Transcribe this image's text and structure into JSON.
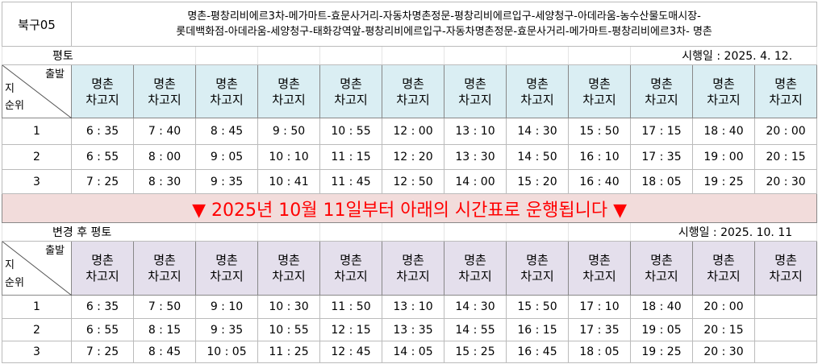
{
  "route_code": "북구05",
  "route_line1": "명촌-평창리비에르3차-메가마트-효문사거리-자동차명촌정문-평창리비에르입구-세양청구-아데라움-농수산물도매시장-",
  "route_line2": "롯데백화점-아데라움-세양청구-태화강역앞-평창리비에르입구-자동차명촌정문-효문사거리-메가마트-평창리비에르3차-  명촌",
  "corner": {
    "top": "출발",
    "mid": "지",
    "bottom": "순위"
  },
  "header_label": "명촌\n차고지",
  "table1": {
    "day_type": "평토",
    "effective": "시행일 : 2025.  4. 12.",
    "rows": [
      {
        "rank": "1",
        "times": [
          "6 : 35",
          "7 : 40",
          "8 : 45",
          "9 : 50",
          "10 : 55",
          "12 : 00",
          "13 : 10",
          "14 : 30",
          "15 : 50",
          "17 : 15",
          "18 : 40",
          "20 : 00"
        ]
      },
      {
        "rank": "2",
        "times": [
          "6 : 55",
          "8 : 00",
          "9 : 05",
          "10 : 10",
          "11 : 15",
          "12 : 20",
          "13 : 30",
          "14 : 50",
          "16 : 10",
          "17 : 35",
          "19 : 00",
          "20 : 15"
        ]
      },
      {
        "rank": "3",
        "times": [
          "7 : 25",
          "8 : 30",
          "9 : 35",
          "10 : 41",
          "11 : 45",
          "12 : 50",
          "14 : 00",
          "15 : 20",
          "16 : 40",
          "18 : 05",
          "19 : 25",
          "20 : 30"
        ]
      }
    ]
  },
  "banner": "▼ 2025년 10월 11일부터 아래의 시간표로 운행됩니다 ▼",
  "table2": {
    "day_type": "변경 후 평토",
    "effective": "시행일 : 2025. 10. 11",
    "rows": [
      {
        "rank": "1",
        "times": [
          "6 : 35",
          "7 : 50",
          "9 : 10",
          "10 : 30",
          "11 : 50",
          "13 : 10",
          "14 : 30",
          "15 : 50",
          "17 : 10",
          "18 : 40",
          "20 : 00",
          ""
        ]
      },
      {
        "rank": "2",
        "times": [
          "6 : 55",
          "8 : 15",
          "9 : 35",
          "10 : 55",
          "12 : 15",
          "13 : 35",
          "14 : 55",
          "16 : 15",
          "17 : 35",
          "19 : 05",
          "20 : 15",
          ""
        ]
      },
      {
        "rank": "3",
        "times": [
          "7 : 25",
          "8 : 45",
          "10 : 05",
          "11 : 25",
          "12 : 45",
          "14 : 05",
          "15 : 25",
          "16 : 45",
          "18 : 05",
          "19 : 25",
          "20 : 30",
          ""
        ]
      }
    ]
  },
  "colors": {
    "header1": "#daeef3",
    "header2": "#e4dfec",
    "banner_bg": "#f2dcdb",
    "banner_text": "#ff0000"
  }
}
